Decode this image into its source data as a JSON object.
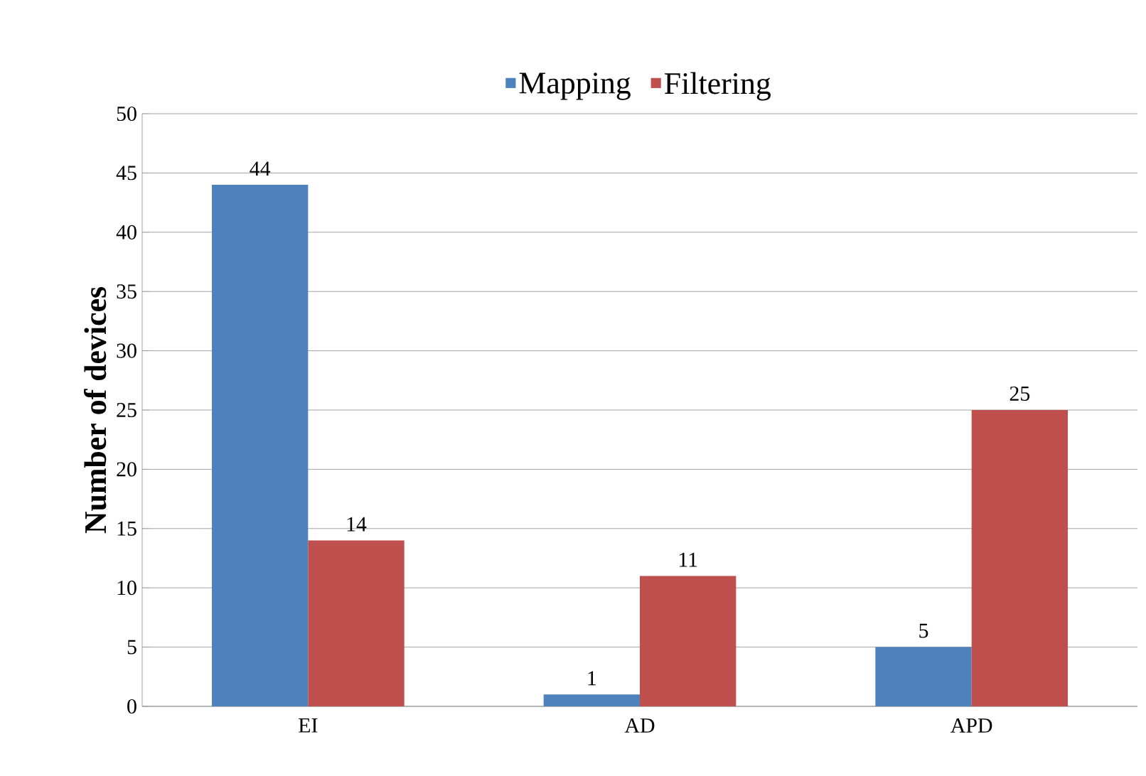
{
  "chart_data": {
    "type": "bar",
    "ylabel": "Number of devices",
    "categories": [
      "EI",
      "AD",
      "APD"
    ],
    "series": [
      {
        "name": "Mapping",
        "color": "#4f81bd",
        "values": [
          44,
          1,
          5
        ]
      },
      {
        "name": "Filtering",
        "color": "#c0504d",
        "values": [
          14,
          11,
          25
        ]
      }
    ],
    "ylim": [
      0,
      50
    ],
    "yticks": [
      0,
      5,
      10,
      15,
      20,
      25,
      30,
      35,
      40,
      45,
      50
    ],
    "grid": "y",
    "legend": "top",
    "data_labels": true
  }
}
